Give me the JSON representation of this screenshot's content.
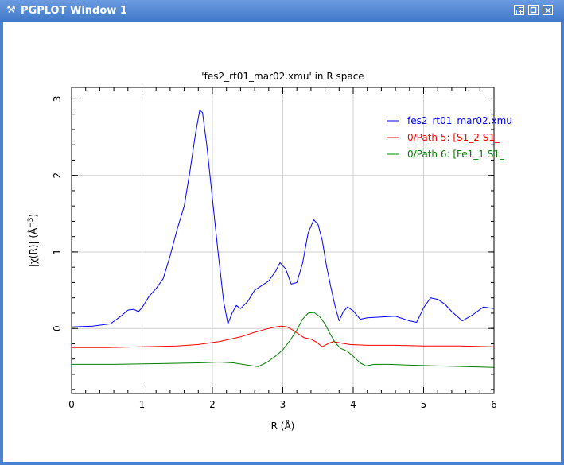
{
  "window": {
    "title": "PGPLOT Window 1",
    "app_icon": "pgplot-app-icon",
    "buttons": [
      "restore-icon",
      "maximize-icon",
      "close-icon"
    ],
    "accent_color": "#4a82cf"
  },
  "chart_data": {
    "type": "line",
    "title": "'fes2_rt01_mar02.xmu' in R space",
    "xlabel": "R (Å)",
    "ylabel": "|χ(R)| (Å",
    "ylabel_exponent": "−3",
    "ylabel_close": ")",
    "xlim": [
      0,
      6
    ],
    "ylim": [
      -0.85,
      3.15
    ],
    "xticks": [
      "0",
      "1",
      "2",
      "3",
      "4",
      "5",
      "6"
    ],
    "yticks": [
      "0",
      "1",
      "2",
      "3"
    ],
    "xtick_values": [
      0,
      1,
      2,
      3,
      4,
      5,
      6
    ],
    "ytick_values": [
      0,
      1,
      2,
      3
    ],
    "grid": true,
    "legend_position": "top-right",
    "series": [
      {
        "name": "fes2_rt01_mar02.xmu",
        "color": "#0000ff",
        "x": [
          0.0,
          0.3,
          0.55,
          0.7,
          0.8,
          0.88,
          0.95,
          1.0,
          1.1,
          1.2,
          1.3,
          1.4,
          1.5,
          1.6,
          1.68,
          1.76,
          1.82,
          1.86,
          1.92,
          2.0,
          2.08,
          2.16,
          2.22,
          2.28,
          2.34,
          2.4,
          2.5,
          2.6,
          2.7,
          2.8,
          2.9,
          2.96,
          3.04,
          3.12,
          3.2,
          3.28,
          3.36,
          3.44,
          3.5,
          3.56,
          3.62,
          3.68,
          3.74,
          3.8,
          3.86,
          3.92,
          4.0,
          4.1,
          4.2,
          4.4,
          4.6,
          4.8,
          4.9,
          5.0,
          5.1,
          5.2,
          5.3,
          5.4,
          5.55,
          5.7,
          5.85,
          6.0
        ],
        "y": [
          0.02,
          0.03,
          0.06,
          0.16,
          0.24,
          0.25,
          0.22,
          0.27,
          0.42,
          0.52,
          0.65,
          0.95,
          1.3,
          1.6,
          2.05,
          2.55,
          2.85,
          2.82,
          2.4,
          1.7,
          1.0,
          0.35,
          0.06,
          0.2,
          0.3,
          0.26,
          0.35,
          0.5,
          0.56,
          0.62,
          0.75,
          0.86,
          0.78,
          0.58,
          0.6,
          0.85,
          1.25,
          1.42,
          1.36,
          1.15,
          0.82,
          0.55,
          0.3,
          0.1,
          0.22,
          0.28,
          0.23,
          0.12,
          0.14,
          0.15,
          0.16,
          0.1,
          0.08,
          0.27,
          0.4,
          0.38,
          0.32,
          0.22,
          0.1,
          0.18,
          0.28,
          0.26
        ]
      },
      {
        "name": "0/Path 5: [S1_2  S1_",
        "color": "#ff0000",
        "x": [
          0.0,
          0.5,
          1.0,
          1.5,
          1.8,
          2.1,
          2.4,
          2.6,
          2.8,
          2.9,
          2.98,
          3.06,
          3.14,
          3.22,
          3.3,
          3.4,
          3.48,
          3.56,
          3.64,
          3.72,
          3.82,
          3.95,
          4.2,
          4.6,
          5.0,
          5.5,
          6.0
        ],
        "y": [
          -0.25,
          -0.25,
          -0.24,
          -0.23,
          -0.21,
          -0.17,
          -0.11,
          -0.05,
          0.0,
          0.02,
          0.03,
          0.02,
          -0.02,
          -0.07,
          -0.12,
          -0.14,
          -0.18,
          -0.24,
          -0.2,
          -0.17,
          -0.19,
          -0.21,
          -0.22,
          -0.22,
          -0.23,
          -0.23,
          -0.24
        ]
      },
      {
        "name": "0/Path 6: [Fe1_1  S1_",
        "color": "#008000",
        "x": [
          0.0,
          0.6,
          1.2,
          1.8,
          2.1,
          2.3,
          2.5,
          2.65,
          2.78,
          2.9,
          3.0,
          3.1,
          3.2,
          3.28,
          3.36,
          3.44,
          3.52,
          3.6,
          3.66,
          3.74,
          3.82,
          3.92,
          4.02,
          4.1,
          4.18,
          4.3,
          4.5,
          4.8,
          5.2,
          5.6,
          6.0
        ],
        "y": [
          -0.47,
          -0.47,
          -0.46,
          -0.45,
          -0.44,
          -0.45,
          -0.48,
          -0.5,
          -0.44,
          -0.36,
          -0.28,
          -0.16,
          -0.02,
          0.12,
          0.2,
          0.21,
          0.16,
          0.06,
          -0.05,
          -0.18,
          -0.26,
          -0.3,
          -0.38,
          -0.45,
          -0.49,
          -0.47,
          -0.47,
          -0.48,
          -0.49,
          -0.5,
          -0.51
        ]
      }
    ]
  }
}
